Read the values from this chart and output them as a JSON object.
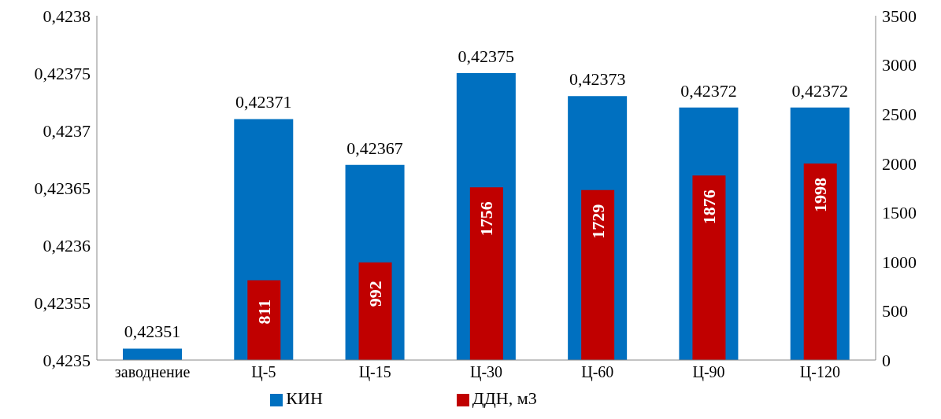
{
  "chart_data": {
    "type": "bar",
    "categories": [
      "заводнение",
      "Ц-5",
      "Ц-15",
      "Ц-30",
      "Ц-60",
      "Ц-90",
      "Ц-120"
    ],
    "series": [
      {
        "name": "КИН",
        "color": "#0070c0",
        "axis": "y",
        "values": [
          0.42351,
          0.42371,
          0.42367,
          0.42375,
          0.42373,
          0.42372,
          0.42372
        ],
        "value_labels": [
          "0,42351",
          "0,42371",
          "0,42367",
          "0,42375",
          "0,42373",
          "0,42372",
          "0,42372"
        ]
      },
      {
        "name": "ДДН, м3",
        "color": "#c00000",
        "axis": "y2",
        "values": [
          null,
          811,
          992,
          1756,
          1729,
          1876,
          1998
        ],
        "value_labels": [
          null,
          "811",
          "992",
          "1756",
          "1729",
          "1876",
          "1998"
        ]
      }
    ],
    "ylim": [
      0.4235,
      0.4238
    ],
    "yticks": [
      {
        "value": 0.4235,
        "label": "0,4235"
      },
      {
        "value": 0.42355,
        "label": "0,42355"
      },
      {
        "value": 0.4236,
        "label": "0,4236"
      },
      {
        "value": 0.42365,
        "label": "0,42365"
      },
      {
        "value": 0.4237,
        "label": "0,4237"
      },
      {
        "value": 0.42375,
        "label": "0,42375"
      },
      {
        "value": 0.4238,
        "label": "0,4238"
      }
    ],
    "y2lim": [
      0,
      3500
    ],
    "y2ticks": [
      0,
      500,
      1000,
      1500,
      2000,
      2500,
      3000,
      3500
    ],
    "grid": false,
    "legend": "bottom"
  }
}
